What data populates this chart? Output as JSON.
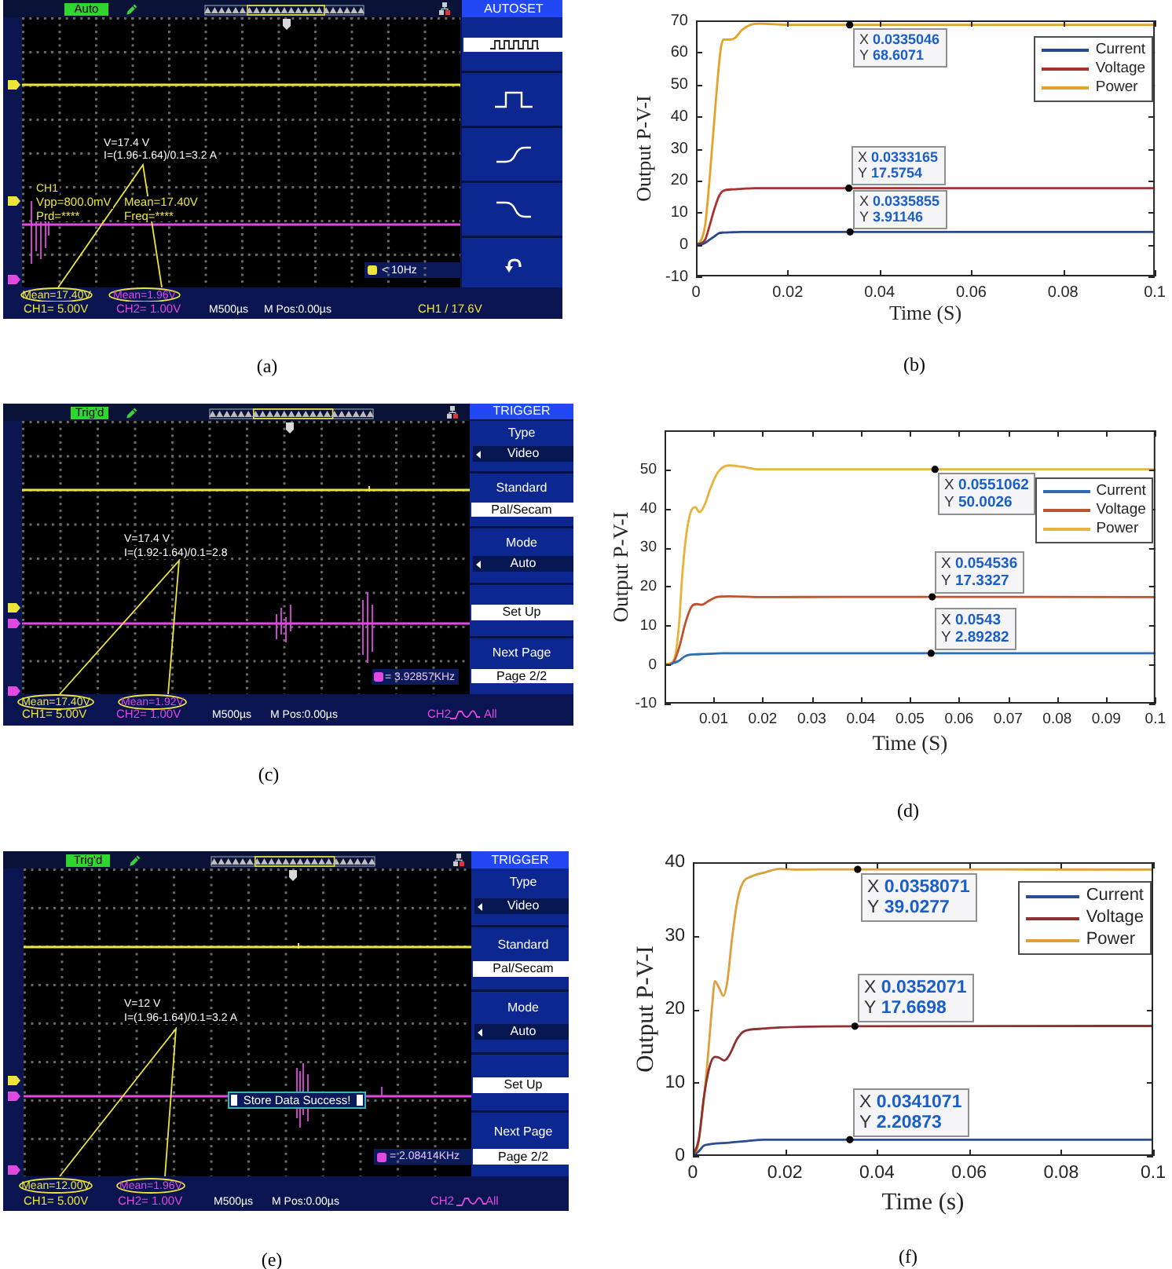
{
  "chart_data": [
    {
      "type": "other",
      "annotations": [
        "Auto",
        "AUTOSET",
        "V=17.4 V",
        "I=(1.96-1.64)/0.1=3.2 A",
        "CH1",
        "Vpp=800.0mV",
        "Prd=****",
        "Mean=17.40V",
        "Freq=****",
        "< 10Hz",
        "Mean=17.40V",
        "Mean=1.96V",
        "CH1= 5.00V",
        "CH2= 1.00V",
        "M500µs",
        "M Pos:0.00µs",
        "CH1 / 17.6V",
        "(a)"
      ]
    },
    {
      "type": "line",
      "xlabel": "Time (S)",
      "ylabel": "Output P-V-I",
      "xlim": [
        0,
        0.1
      ],
      "ylim": [
        -10,
        70
      ],
      "xticks": [
        0,
        0.02,
        0.04,
        0.06,
        0.08,
        0.1
      ],
      "yticks": [
        -10,
        0,
        10,
        20,
        30,
        40,
        50,
        60,
        70
      ],
      "legend": "top right",
      "series": [
        {
          "name": "Current",
          "color": "#2a4a8c",
          "x": [
            0,
            0.001,
            0.002,
            0.003,
            0.004,
            0.005,
            0.006,
            0.008,
            0.01,
            0.02,
            0.0335855,
            0.1
          ],
          "values": [
            0,
            0,
            0.5,
            1.5,
            2.5,
            3.5,
            3.7,
            3.8,
            3.9,
            3.9,
            3.91146,
            3.9
          ]
        },
        {
          "name": "Voltage",
          "color": "#a8322d",
          "x": [
            0,
            0.001,
            0.002,
            0.003,
            0.004,
            0.005,
            0.006,
            0.008,
            0.01,
            0.013,
            0.02,
            0.0333165,
            0.1
          ],
          "values": [
            0,
            0.3,
            1.5,
            6,
            11,
            15,
            16.8,
            17.2,
            17.4,
            17.6,
            17.6,
            17.5754,
            17.6
          ]
        },
        {
          "name": "Power",
          "color": "#e3a22a",
          "x": [
            0,
            0.001,
            0.002,
            0.003,
            0.004,
            0.005,
            0.0055,
            0.006,
            0.0075,
            0.0085,
            0.01,
            0.012,
            0.014,
            0.02,
            0.0335046,
            0.1
          ],
          "values": [
            0,
            1,
            6,
            21,
            39,
            56,
            62,
            64,
            64,
            64.5,
            67,
            68.7,
            69,
            68.6,
            68.6071,
            68.6
          ]
        }
      ],
      "annotations": [
        {
          "text": "X 0.0335046\nY 68.6071",
          "x": 0.0335046,
          "y": 68.6071
        },
        {
          "text": "X 0.0333165\nY 17.5754",
          "x": 0.0333165,
          "y": 17.5754
        },
        {
          "text": "X 0.0335855\nY 3.91146",
          "x": 0.0335855,
          "y": 3.91146
        },
        "(b)"
      ]
    },
    {
      "type": "other",
      "annotations": [
        "Trig'd",
        "TRIGGER",
        "Type",
        "Video",
        "Standard",
        "Pal/Secam",
        "Mode",
        "Auto",
        "Set Up",
        "Next Page",
        "Page 2/2",
        "V=17.4 V",
        "I=(1.92-1.64)/0.1=2.8",
        "= 3.92857KHz",
        "Mean=17.40V",
        "Mean=1.92V",
        "CH1= 5.00V",
        "CH2= 1.00V",
        "M500µs",
        "M Pos:0.00µs",
        "CH2",
        "All",
        "(c)"
      ]
    },
    {
      "type": "line",
      "xlabel": "Time (S)",
      "ylabel": "Output P-V-I",
      "xlim": [
        0,
        0.1
      ],
      "ylim": [
        -10,
        60
      ],
      "xticks": [
        0.01,
        0.02,
        0.03,
        0.04,
        0.05,
        0.06,
        0.07,
        0.08,
        0.09,
        0.1
      ],
      "yticks": [
        -10,
        0,
        10,
        20,
        30,
        40,
        50
      ],
      "legend": "top right",
      "series": [
        {
          "name": "Current",
          "color": "#2f6db3",
          "x": [
            0,
            0.001,
            0.002,
            0.003,
            0.004,
            0.005,
            0.006,
            0.008,
            0.01,
            0.012,
            0.0543,
            0.1
          ],
          "values": [
            0,
            0,
            0.5,
            1,
            2,
            2.5,
            2.6,
            2.7,
            2.8,
            2.9,
            2.89282,
            2.9
          ]
        },
        {
          "name": "Voltage",
          "color": "#c0532f",
          "x": [
            0,
            0.001,
            0.002,
            0.003,
            0.0044,
            0.0056,
            0.0065,
            0.0075,
            0.009,
            0.0106,
            0.013,
            0.02,
            0.054536,
            0.1
          ],
          "values": [
            0,
            0,
            1,
            4.5,
            11.3,
            15,
            15.5,
            15.3,
            16.3,
            17.3,
            17.5,
            17.3,
            17.3327,
            17.3
          ]
        },
        {
          "name": "Power",
          "color": "#e8b33c",
          "x": [
            0,
            0.001,
            0.002,
            0.003,
            0.0035,
            0.0044,
            0.0054,
            0.0063,
            0.0071,
            0.0081,
            0.0094,
            0.0109,
            0.0131,
            0.0156,
            0.0194,
            0.0551062,
            0.1
          ],
          "values": [
            0,
            0.3,
            1.5,
            11,
            21,
            33,
            39.3,
            40.3,
            39,
            40.7,
            45.3,
            49.3,
            51,
            50.7,
            50,
            50.0026,
            50
          ]
        }
      ],
      "annotations": [
        {
          "text": "X 0.0551062\nY 50.0026",
          "x": 0.0551062,
          "y": 50.0026
        },
        {
          "text": "X 0.054536\nY 17.3327",
          "x": 0.054536,
          "y": 17.3327
        },
        {
          "text": "X 0.0543\nY 2.89282",
          "x": 0.0543,
          "y": 2.89282
        },
        "(d)"
      ]
    },
    {
      "type": "other",
      "annotations": [
        "Trig'd",
        "TRIGGER",
        "Type",
        "Video",
        "Standard",
        "Pal/Secam",
        "Mode",
        "Auto",
        "Set Up",
        "Next Page",
        "Page 2/2",
        "V=12 V",
        "I=(1.96-1.64)/0.1=3.2 A",
        "Store Data Success!",
        "= 2.08414KHz",
        "Mean=12.00V",
        "Mean=1.96V",
        "CH1= 5.00V",
        "CH2= 1.00V",
        "M500µs",
        "M Pos:0.00µs",
        "CH2",
        "All",
        "(e)"
      ]
    },
    {
      "type": "line",
      "xlabel": "Time (s)",
      "ylabel": "Output P-V-I",
      "xlim": [
        0,
        0.1
      ],
      "ylim": [
        0,
        40
      ],
      "xticks": [
        0,
        0.02,
        0.04,
        0.06,
        0.08,
        0.1
      ],
      "yticks": [
        0,
        10,
        20,
        30,
        40
      ],
      "legend": "top right",
      "series": [
        {
          "name": "Current",
          "color": "#2c4d8e",
          "x": [
            0,
            0.0011,
            0.0024,
            0.0037,
            0.0052,
            0.0079,
            0.0112,
            0.0156,
            0.02,
            0.0341071,
            0.1
          ],
          "values": [
            0,
            0.5,
            1.4,
            1.6,
            1.7,
            1.8,
            2,
            2.2,
            2.2,
            2.20873,
            2.2
          ]
        },
        {
          "name": "Voltage",
          "color": "#8e3030",
          "x": [
            0,
            0.0013,
            0.0024,
            0.0037,
            0.0048,
            0.0057,
            0.0068,
            0.0079,
            0.0096,
            0.0112,
            0.0145,
            0.0189,
            0.0352071,
            0.1
          ],
          "values": [
            0,
            2.3,
            8,
            12.3,
            13.5,
            13.4,
            13,
            13.7,
            15.9,
            17,
            17.3,
            17.5,
            17.6698,
            17.7
          ]
        },
        {
          "name": "Power",
          "color": "#dca03c",
          "x": [
            0,
            0.0008,
            0.0022,
            0.0033,
            0.0042,
            0.0048,
            0.0057,
            0.0066,
            0.0075,
            0.0085,
            0.0096,
            0.0107,
            0.0129,
            0.0156,
            0.0189,
            0.022,
            0.0358071,
            0.1
          ],
          "values": [
            0,
            0.5,
            6.6,
            13.7,
            20.5,
            23.8,
            22.9,
            21.8,
            23.8,
            29.5,
            34.5,
            37,
            38.1,
            38.6,
            39.1,
            39,
            39.0277,
            39
          ]
        }
      ],
      "annotations": [
        {
          "text": "X 0.0358071\nY 39.0277",
          "x": 0.0358071,
          "y": 39.0277
        },
        {
          "text": "X 0.0352071\nY 17.6698",
          "x": 0.0352071,
          "y": 17.6698
        },
        {
          "text": "X 0.0341071\nY 2.20873",
          "x": 0.0341071,
          "y": 2.20873
        },
        "(f)"
      ]
    }
  ]
}
